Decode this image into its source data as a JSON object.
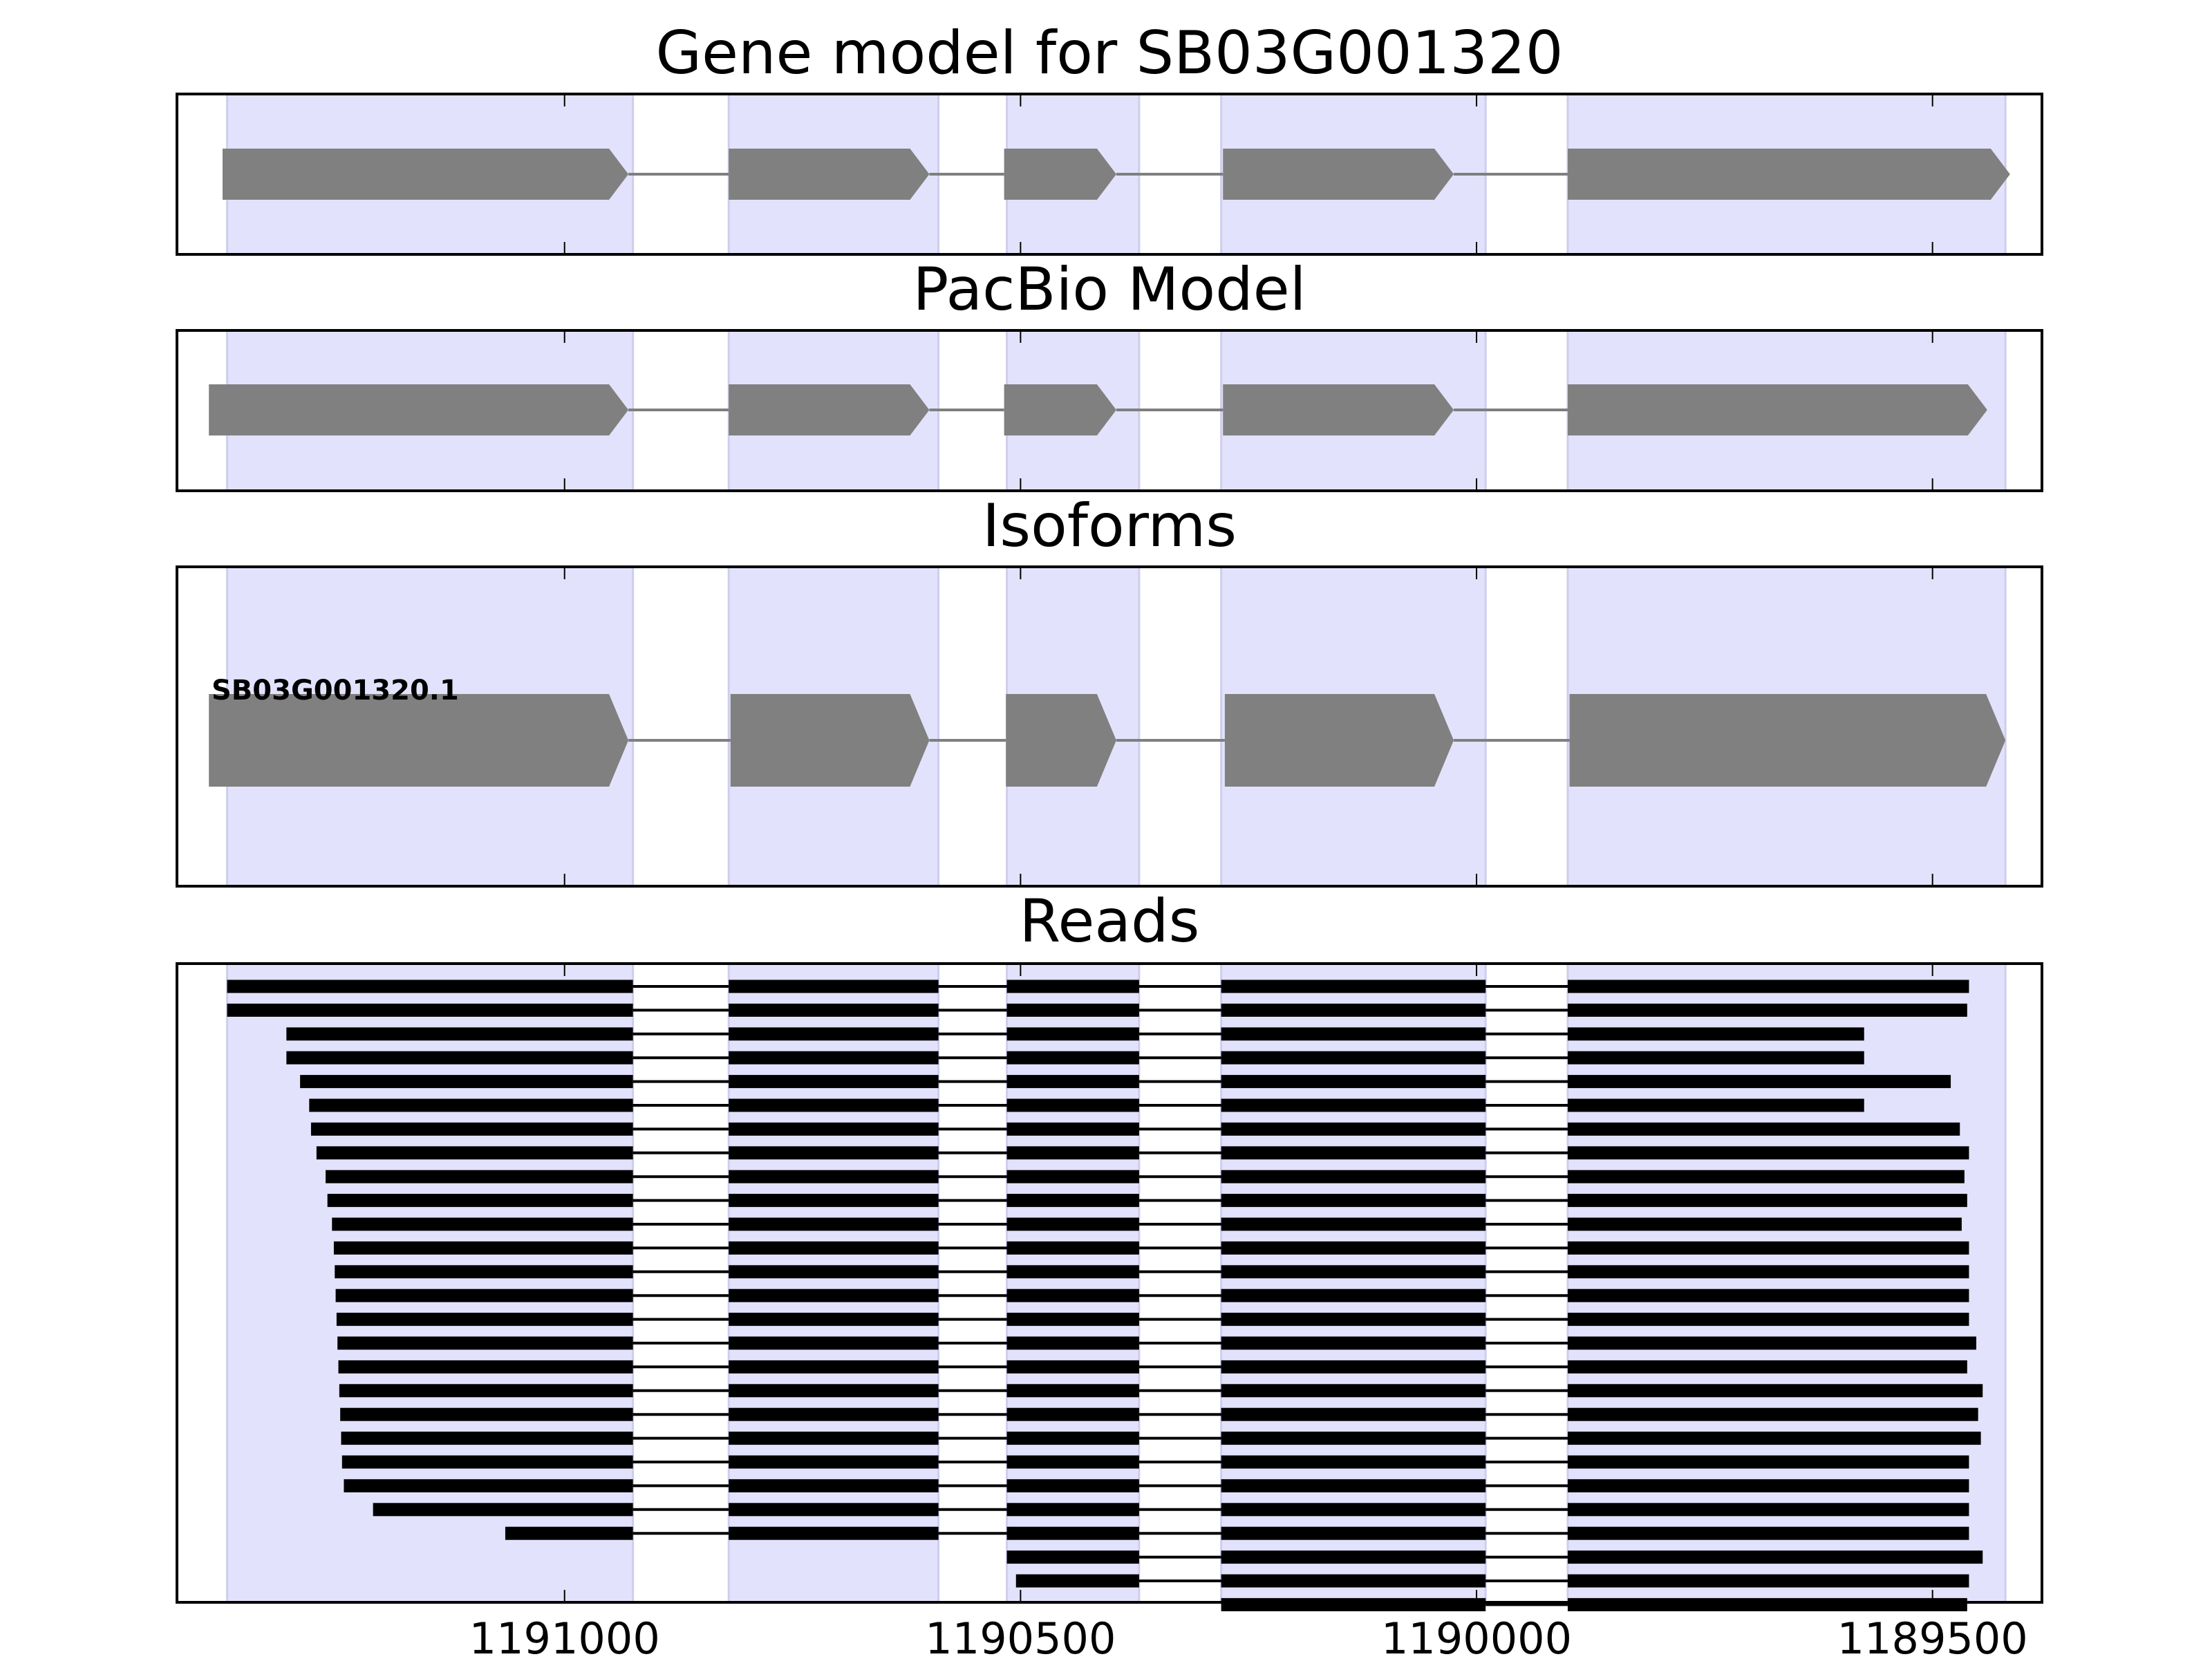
{
  "chart_data": {
    "type": "gene_track",
    "xaxis": {
      "lim": [
        1191425,
        1189380
      ],
      "ticks": [
        1191000,
        1190500,
        1190000,
        1189500
      ],
      "tick_labels": [
        "1191000",
        "1190500",
        "1190000",
        "1189500"
      ]
    },
    "exon_regions": [
      [
        1191370,
        1190925
      ],
      [
        1190820,
        1190590
      ],
      [
        1190515,
        1190370
      ],
      [
        1190280,
        1189990
      ],
      [
        1189900,
        1189420
      ]
    ],
    "panels": [
      {
        "id": "gene-model",
        "title": "Gene model for SB03G001320",
        "tracks": [
          {
            "exons": [
              [
                1191375,
                1190930
              ],
              [
                1190820,
                1190600
              ],
              [
                1190518,
                1190395
              ],
              [
                1190278,
                1190025
              ],
              [
                1189900,
                1189415
              ]
            ]
          }
        ]
      },
      {
        "id": "pacbio-model",
        "title": "PacBio Model",
        "tracks": [
          {
            "exons": [
              [
                1191390,
                1190930
              ],
              [
                1190820,
                1190600
              ],
              [
                1190518,
                1190395
              ],
              [
                1190278,
                1190025
              ],
              [
                1189900,
                1189440
              ]
            ]
          }
        ]
      },
      {
        "id": "isoforms",
        "title": "Isoforms",
        "tracks": [
          {
            "label": "SB03G001320.1",
            "exons": [
              [
                1191390,
                1190930
              ],
              [
                1190818,
                1190600
              ],
              [
                1190516,
                1190395
              ],
              [
                1190276,
                1190025
              ],
              [
                1189898,
                1189420
              ]
            ]
          }
        ]
      },
      {
        "id": "reads",
        "title": "Reads",
        "read_starts": [
          1191400,
          1191390,
          1191305,
          1191305,
          1191290,
          1191280,
          1191278,
          1191272,
          1191262,
          1191260,
          1191255,
          1191253,
          1191252,
          1191251,
          1191250,
          1191249,
          1191248,
          1191247,
          1191246,
          1191245,
          1191244,
          1191242,
          1191210,
          1191065,
          1190525,
          1190505,
          1190300
        ],
        "read_ends": [
          1189460,
          1189462,
          1189575,
          1189575,
          1189480,
          1189575,
          1189470,
          1189460,
          1189465,
          1189462,
          1189468,
          1189460,
          1189460,
          1189460,
          1189460,
          1189452,
          1189462,
          1189445,
          1189450,
          1189447,
          1189460,
          1189460,
          1189460,
          1189460,
          1189445,
          1189460,
          1189462
        ]
      }
    ]
  }
}
